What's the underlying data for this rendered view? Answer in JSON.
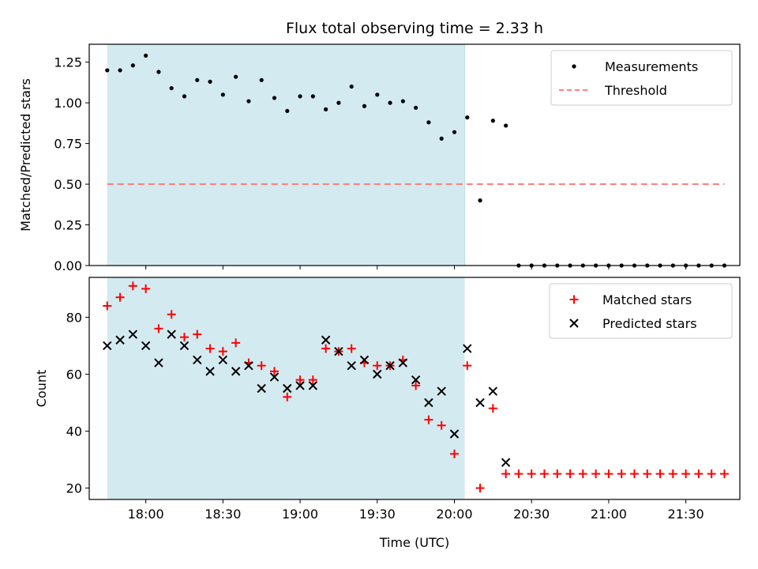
{
  "chart_data": [
    {
      "type": "scatter",
      "title": "Flux total observing time = 2.33 h",
      "xlabel": "",
      "ylabel": "Matched/Predicted stars",
      "ylim": [
        0.0,
        1.36
      ],
      "xlim": [
        "17:38",
        "21:51"
      ],
      "yticks": [
        "0.00",
        "0.25",
        "0.50",
        "0.75",
        "1.00",
        "1.25"
      ],
      "shaded_region": {
        "start": "17:45",
        "end": "20:04",
        "color": "#d3eaf0"
      },
      "threshold": {
        "name": "Threshold",
        "value": 0.5,
        "x_start": "17:45",
        "x_end": "21:45",
        "color": "#ff7f7f"
      },
      "series": [
        {
          "name": "Measurements",
          "color": "#000000",
          "x": [
            "17:45",
            "17:50",
            "17:55",
            "18:00",
            "18:05",
            "18:10",
            "18:15",
            "18:20",
            "18:25",
            "18:30",
            "18:35",
            "18:40",
            "18:45",
            "18:50",
            "18:55",
            "19:00",
            "19:05",
            "19:10",
            "19:15",
            "19:20",
            "19:25",
            "19:30",
            "19:35",
            "19:40",
            "19:45",
            "19:50",
            "19:55",
            "20:00",
            "20:05",
            "20:10",
            "20:15",
            "20:20",
            "20:25",
            "20:30",
            "20:35",
            "20:40",
            "20:45",
            "20:50",
            "20:55",
            "21:00",
            "21:05",
            "21:10",
            "21:15",
            "21:20",
            "21:25",
            "21:30",
            "21:35",
            "21:40",
            "21:45"
          ],
          "y": [
            1.2,
            1.2,
            1.23,
            1.29,
            1.19,
            1.09,
            1.04,
            1.14,
            1.13,
            1.05,
            1.16,
            1.01,
            1.14,
            1.03,
            0.95,
            1.04,
            1.04,
            0.96,
            1.0,
            1.1,
            0.98,
            1.05,
            1.0,
            1.01,
            0.97,
            0.88,
            0.78,
            0.82,
            0.91,
            0.4,
            0.89,
            0.86,
            0.0,
            0.0,
            0.0,
            0.0,
            0.0,
            0.0,
            0.0,
            0.0,
            0.0,
            0.0,
            0.0,
            0.0,
            0.0,
            0.0,
            0.0,
            0.0,
            0.0
          ]
        }
      ],
      "legend": {
        "position": "upper right",
        "entries": [
          "Measurements",
          "Threshold"
        ]
      }
    },
    {
      "type": "scatter",
      "title": "",
      "xlabel": "Time (UTC)",
      "ylabel": "Count",
      "ylim": [
        16,
        94
      ],
      "xlim": [
        "17:38",
        "21:51"
      ],
      "yticks": [
        "20",
        "40",
        "60",
        "80"
      ],
      "xticks": [
        "18:00",
        "18:30",
        "19:00",
        "19:30",
        "20:00",
        "20:30",
        "21:00",
        "21:30"
      ],
      "shaded_region": {
        "start": "17:45",
        "end": "20:04",
        "color": "#d3eaf0"
      },
      "series": [
        {
          "name": "Matched stars",
          "marker": "+",
          "color": "#ff0000",
          "x": [
            "17:45",
            "17:50",
            "17:55",
            "18:00",
            "18:05",
            "18:10",
            "18:15",
            "18:20",
            "18:25",
            "18:30",
            "18:35",
            "18:40",
            "18:45",
            "18:50",
            "18:55",
            "19:00",
            "19:05",
            "19:10",
            "19:15",
            "19:20",
            "19:25",
            "19:30",
            "19:35",
            "19:40",
            "19:45",
            "19:50",
            "19:55",
            "20:00",
            "20:05",
            "20:10",
            "20:15",
            "20:20",
            "20:25",
            "20:30",
            "20:35",
            "20:40",
            "20:45",
            "20:50",
            "20:55",
            "21:00",
            "21:05",
            "21:10",
            "21:15",
            "21:20",
            "21:25",
            "21:30",
            "21:35",
            "21:40",
            "21:45"
          ],
          "y": [
            84,
            87,
            91,
            90,
            76,
            81,
            73,
            74,
            69,
            68,
            71,
            64,
            63,
            61,
            52,
            58,
            58,
            69,
            68,
            69,
            64,
            63,
            63,
            65,
            56,
            44,
            42,
            32,
            63,
            20,
            48,
            25,
            25,
            25,
            25,
            25,
            25,
            25,
            25,
            25,
            25,
            25,
            25,
            25,
            25,
            25,
            25,
            25,
            25
          ]
        },
        {
          "name": "Predicted stars",
          "marker": "x",
          "color": "#000000",
          "x": [
            "17:45",
            "17:50",
            "17:55",
            "18:00",
            "18:05",
            "18:10",
            "18:15",
            "18:20",
            "18:25",
            "18:30",
            "18:35",
            "18:40",
            "18:45",
            "18:50",
            "18:55",
            "19:00",
            "19:05",
            "19:10",
            "19:15",
            "19:20",
            "19:25",
            "19:30",
            "19:35",
            "19:40",
            "19:45",
            "19:50",
            "19:55",
            "20:00",
            "20:05",
            "20:10",
            "20:15",
            "20:20"
          ],
          "y": [
            70,
            72,
            74,
            70,
            64,
            74,
            70,
            65,
            61,
            65,
            61,
            63,
            55,
            59,
            55,
            56,
            56,
            72,
            68,
            63,
            65,
            60,
            63,
            64,
            58,
            50,
            54,
            39,
            69,
            50,
            54,
            29
          ]
        }
      ],
      "legend": {
        "position": "upper right",
        "entries": [
          "Matched stars",
          "Predicted stars"
        ]
      }
    }
  ]
}
